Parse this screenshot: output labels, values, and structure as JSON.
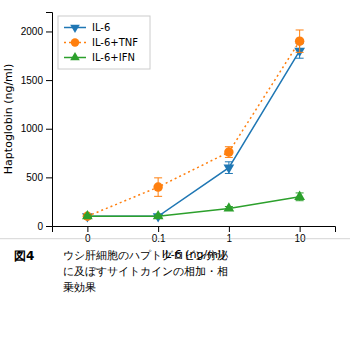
{
  "chart_data": {
    "type": "line",
    "xlabel": "IL-6 (ng/ml)",
    "ylabel": "Haptoglobin (ng/ml)",
    "categories": [
      "0",
      "0.1",
      "1",
      "10"
    ],
    "series": [
      {
        "name": "IL-6",
        "values": [
          100,
          100,
          600,
          1800
        ],
        "errors": [
          15,
          12,
          60,
          75
        ],
        "marker": "triangle-down",
        "line_style": "solid"
      },
      {
        "name": "IL-6+TNF",
        "values": [
          100,
          400,
          760,
          1900
        ],
        "errors": [
          15,
          95,
          55,
          115
        ],
        "marker": "circle",
        "line_style": "dotted"
      },
      {
        "name": "IL-6+IFN",
        "values": [
          100,
          100,
          180,
          300
        ],
        "errors": [
          15,
          12,
          20,
          40
        ],
        "marker": "triangle-up",
        "line_style": "solid"
      }
    ],
    "ylim": [
      0,
      2200
    ],
    "yticks": [
      0,
      500,
      1000,
      1500,
      2000
    ],
    "legend": "upper-left",
    "annotations": [
      "図4",
      "ウシ肝細胞のハプトグロビン分泌\nに及ぼすサイトカインの相加・相\n乗効果"
    ]
  }
}
